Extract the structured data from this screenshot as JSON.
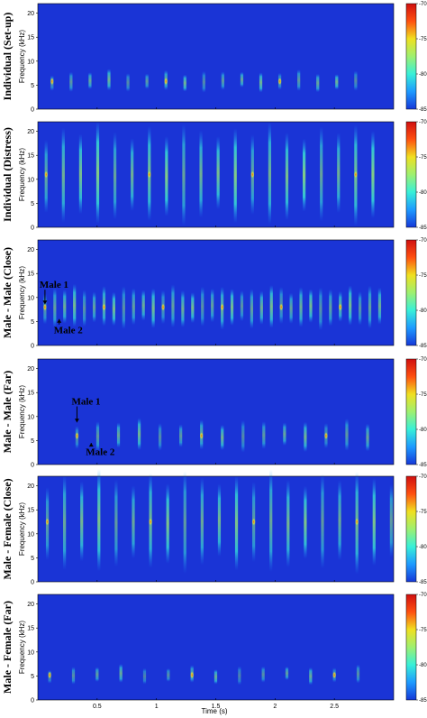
{
  "chart_data": {
    "type": "heatmap",
    "xlabel": "Time (s)",
    "x_ticks": [
      "0.5",
      "1",
      "1.5",
      "2",
      "2.5"
    ],
    "xlim": [
      0,
      3.0
    ],
    "ylabel": "Frequency (kHz)",
    "y_ticks": [
      "0",
      "5",
      "10",
      "15",
      "20"
    ],
    "ylim": [
      0,
      22
    ],
    "colorbar_ticks": [
      "-70",
      "-75",
      "-80",
      "-85"
    ],
    "colorbar_range": [
      -85,
      -70
    ],
    "colormap": [
      "#1538d8",
      "#1e9aff",
      "#38f0d8",
      "#9ef070",
      "#f0e020",
      "#ff5010",
      "#d01010"
    ],
    "background_color": "#1a34d6",
    "panels": [
      {
        "title": "Individual (Set-up)",
        "syllables": {
          "start": 0.12,
          "spacing": 0.16,
          "count": 17,
          "center_khz": 5.8,
          "span_khz": 4.0,
          "level": 0.5
        },
        "annotations": []
      },
      {
        "title": "Individual (Distress)",
        "syllables": {
          "start": 0.07,
          "spacing": 0.145,
          "count": 20,
          "center_khz": 11.0,
          "span_khz": 19.0,
          "level": 0.65
        },
        "annotations": []
      },
      {
        "title": "Male - Male (Close)",
        "syllables": {
          "start": 0.06,
          "spacing": 0.083,
          "count": 35,
          "center_khz": 8.0,
          "span_khz": 8.0,
          "level": 0.55
        },
        "annotations": [
          {
            "text": "Male 1",
            "time": 0.06,
            "freq": 12.0,
            "arrow_to_freq": 8.6
          },
          {
            "text": "Male 2",
            "time": 0.18,
            "freq": 2.5,
            "arrow_to_freq": 5.5
          }
        ]
      },
      {
        "title": "Male - Male (Far)",
        "syllables": {
          "start": 0.33,
          "spacing": 0.175,
          "count": 15,
          "center_khz": 6.0,
          "span_khz": 6.0,
          "level": 0.5
        },
        "annotations": [
          {
            "text": "Male 1",
            "time": 0.33,
            "freq": 12.5,
            "arrow_to_freq": 8.8
          },
          {
            "text": "Male 2",
            "time": 0.45,
            "freq": 2.0,
            "arrow_to_freq": 4.5
          }
        ]
      },
      {
        "title": "Male - Female (Close)",
        "syllables": {
          "start": 0.08,
          "spacing": 0.145,
          "count": 21,
          "center_khz": 12.5,
          "span_khz": 19.0,
          "level": 0.6
        },
        "annotations": []
      },
      {
        "title": "Male - Female (Far)",
        "syllables": {
          "start": 0.1,
          "spacing": 0.2,
          "count": 14,
          "center_khz": 5.2,
          "span_khz": 3.5,
          "level": 0.45
        },
        "annotations": []
      }
    ]
  }
}
